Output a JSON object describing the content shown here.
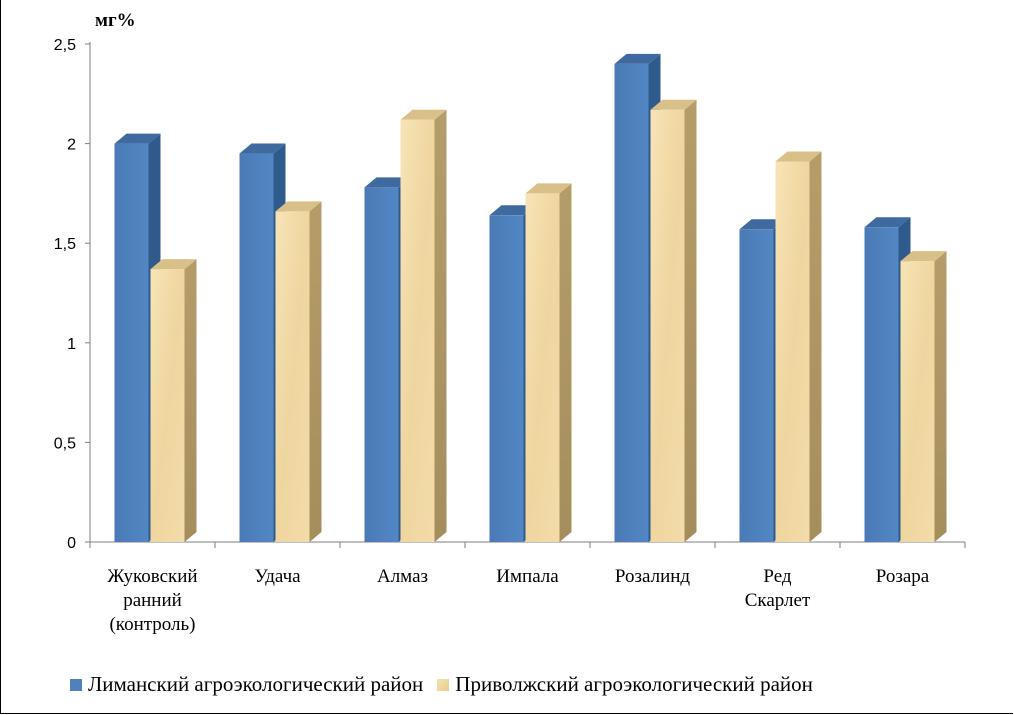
{
  "chart_data": {
    "type": "bar",
    "title": "",
    "xlabel": "",
    "ylabel": "мг%",
    "ylim": [
      0,
      2.5
    ],
    "yticks": [
      "0",
      "0,5",
      "1",
      "1,5",
      "2",
      "2,5"
    ],
    "categories": [
      [
        "Жуковский",
        "ранний",
        "(контроль)"
      ],
      [
        "Удача"
      ],
      [
        "Алмаз"
      ],
      [
        "Импала"
      ],
      [
        "Розалинд"
      ],
      [
        "Ред",
        "Скарлет"
      ],
      [
        "Розара"
      ]
    ],
    "series": [
      {
        "name": "Лиманский агроэкологический район",
        "color": "#4f81bd",
        "values": [
          2.0,
          1.95,
          1.78,
          1.64,
          2.4,
          1.57,
          1.58
        ]
      },
      {
        "name": "Приволжский агроэкологический район",
        "color": "#e8cc8f",
        "values": [
          1.37,
          1.66,
          2.12,
          1.75,
          2.17,
          1.91,
          1.41
        ]
      }
    ],
    "grid": false,
    "legend_position": "bottom"
  }
}
